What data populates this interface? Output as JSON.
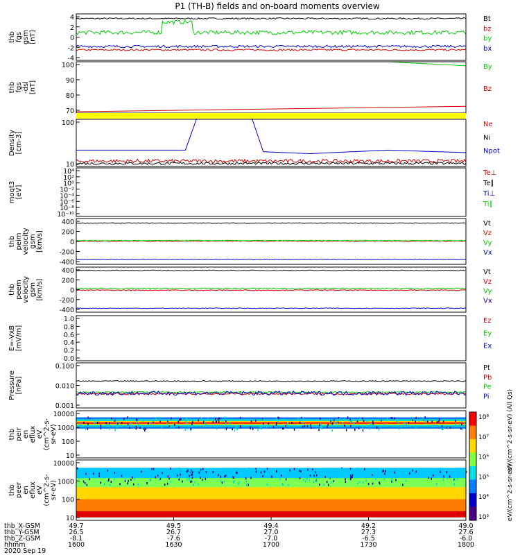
{
  "title": "P1 (TH-B) fields and on-board moments overview",
  "footer": {
    "labels": [
      "thb_X-GSM",
      "thb_Y-GSM",
      "thb_Z-GSM",
      "hhmm"
    ],
    "rows": [
      [
        "49.7",
        "49.5",
        "49.4",
        "49.2",
        "49.0"
      ],
      [
        "26.5",
        "26.7",
        "27.0",
        "27.3",
        "27.6"
      ],
      [
        "-8.1",
        "-7.6",
        "-7.0",
        "-6.5",
        "-6.0"
      ],
      [
        "1600",
        "1630",
        "1700",
        "1730",
        "1800"
      ]
    ],
    "date": "2020 Sep 19"
  },
  "colorbar": {
    "ticks": [
      "10⁸",
      "10⁷",
      "10⁶",
      "10⁵",
      "10⁴",
      "10³"
    ],
    "label_top": "eV/(cm^2-s-sr-eV) (All Qs)",
    "label_bottom": "eV/(cm^2-s-sr-eV)"
  },
  "chart_data": [
    {
      "type": "line",
      "panel": "thb fgs gsm",
      "ylabel": [
        "thb",
        "fgs",
        "gsm",
        "[nT]"
      ],
      "yticks": [
        "4",
        "2",
        "0",
        "-2",
        "-4"
      ],
      "ylim": [
        -4,
        4
      ],
      "series": [
        {
          "name": "Bt",
          "color": "#000000",
          "base": 3.2,
          "noise": 0.12
        },
        {
          "name": "bz",
          "color": "#cc0000",
          "base": -2.2,
          "noise": 0.15
        },
        {
          "name": "by",
          "color": "#00cc00",
          "base": 0.8,
          "noise": 0.35
        },
        {
          "name": "bx",
          "color": "#0000cc",
          "base": -1.6,
          "noise": 0.2
        }
      ]
    },
    {
      "type": "line",
      "panel": "thb fgs -dsl",
      "ylabel": [
        "thb",
        "fgs",
        "-dsl",
        "[nT]"
      ],
      "yticks": [
        "100",
        "90",
        "80",
        "70"
      ],
      "ylim": [
        62,
        100
      ],
      "series": [
        {
          "name": "By",
          "color": "#00cc00",
          "x": [
            0.8,
            1.0
          ],
          "y": [
            100,
            97
          ]
        },
        {
          "name": "Bz",
          "color": "#cc0000",
          "x": [
            0,
            1.0
          ],
          "y": [
            63,
            67
          ]
        }
      ]
    },
    {
      "type": "line",
      "panel": "Density",
      "scale": "log",
      "ylabel": [
        "Density",
        "[cm-3]"
      ],
      "yticks": [
        "100",
        "10"
      ],
      "ylim": [
        3,
        250
      ],
      "series": [
        {
          "name": "Ne",
          "color": "#cc0000",
          "base": 5,
          "noise": 0.15
        },
        {
          "name": "Ni",
          "color": "#000000",
          "base": 4,
          "noise": 0.1
        },
        {
          "name": "Npot",
          "color": "#0000cc",
          "x": [
            0,
            0.28,
            0.31,
            0.45,
            0.48,
            0.6,
            0.8,
            1.0
          ],
          "y": [
            14,
            14,
            300,
            300,
            12,
            10,
            14,
            11
          ]
        }
      ]
    },
    {
      "type": "line",
      "panel": "moqt3",
      "scale": "log",
      "ylabel": [
        "moqt3",
        "[eV]"
      ],
      "yticks": [
        "10⁴",
        "10²",
        "10⁰",
        "10⁻²",
        "10⁻⁴",
        "10⁻⁶",
        "10⁻⁸",
        "10⁻¹⁰"
      ],
      "legend": [
        "Te⊥",
        "Te∥",
        "Ti⊥",
        "Ti∥"
      ],
      "legend_colors": [
        "#cc0000",
        "#000000",
        "#0000cc",
        "#00cc00"
      ]
    },
    {
      "type": "line",
      "panel": "thb peim velocity gsm",
      "ylabel": [
        "thb",
        "peim",
        "velocity",
        "gsm",
        "[km/s]"
      ],
      "yticks": [
        "400",
        "200",
        "0",
        "-200",
        "-400"
      ],
      "ylim": [
        -400,
        400
      ],
      "series": [
        {
          "name": "Vt",
          "color": "#000000",
          "base": 320,
          "noise": 6
        },
        {
          "name": "Vz",
          "color": "#cc0000",
          "base": 5,
          "noise": 6
        },
        {
          "name": "Vy",
          "color": "#00cc00",
          "base": 15,
          "noise": 6
        },
        {
          "name": "Vx",
          "color": "#0000cc",
          "base": -315,
          "noise": 5
        }
      ]
    },
    {
      "type": "line",
      "panel": "thb peem velocity gsm",
      "ylabel": [
        "thb",
        "peem",
        "velocity",
        "gsm",
        "[km/s]"
      ],
      "yticks": [
        "400",
        "200",
        "0",
        "-200",
        "-400"
      ],
      "ylim": [
        -400,
        400
      ],
      "series": [
        {
          "name": "Vt",
          "color": "#000000",
          "base": 340,
          "noise": 8
        },
        {
          "name": "Vz",
          "color": "#cc0000",
          "base": -10,
          "noise": 8
        },
        {
          "name": "Vy",
          "color": "#00cc00",
          "base": 20,
          "noise": 8
        },
        {
          "name": "Vx",
          "color": "#0000cc",
          "base": -330,
          "noise": 6
        }
      ]
    },
    {
      "type": "line",
      "panel": "E=-VxB",
      "ylabel": [
        "E=-VxB",
        "[mV/m]"
      ],
      "yticks": [
        "1.0",
        "0.8",
        "0.6",
        "0.4",
        "0.2",
        "0.0"
      ],
      "ylim": [
        0,
        1
      ],
      "legend": [
        "Ez",
        "Ey",
        "Ex"
      ],
      "legend_colors": [
        "#cc0000",
        "#00cc00",
        "#0000cc"
      ]
    },
    {
      "type": "line",
      "panel": "Pressure",
      "scale": "log",
      "ylabel": [
        "Pressure",
        "[nPa]"
      ],
      "yticks": [
        "0.100",
        "0.010",
        "0.001"
      ],
      "ylim": [
        0.001,
        0.1
      ],
      "series": [
        {
          "name": "Pt",
          "color": "#000000",
          "base": 0.0155,
          "noise": 0.04
        },
        {
          "name": "Pb",
          "color": "#cc0000",
          "base": 0.0042,
          "noise": 0.08
        },
        {
          "name": "Pe",
          "color": "#00cc00",
          "base": 0.005,
          "noise": 0.05
        },
        {
          "name": "Pi",
          "color": "#0000cc",
          "base": 0.0045,
          "noise": 0.18
        }
      ]
    },
    {
      "type": "heatmap",
      "panel": "thb peir en eflux",
      "ylabel": [
        "thb",
        "peir",
        "en",
        "eflux",
        "eV",
        "(cm^2-s-",
        "sr-eV)"
      ],
      "yticks": [
        "10000",
        "1000",
        "100",
        "10"
      ]
    },
    {
      "type": "heatmap",
      "panel": "thb peer en eflux",
      "ylabel": [
        "thb",
        "peer",
        "en",
        "eflux",
        "eV",
        "(cm^2-s-",
        "sr-eV)"
      ],
      "yticks": [
        "10000",
        "1000",
        "100",
        "10"
      ]
    }
  ]
}
